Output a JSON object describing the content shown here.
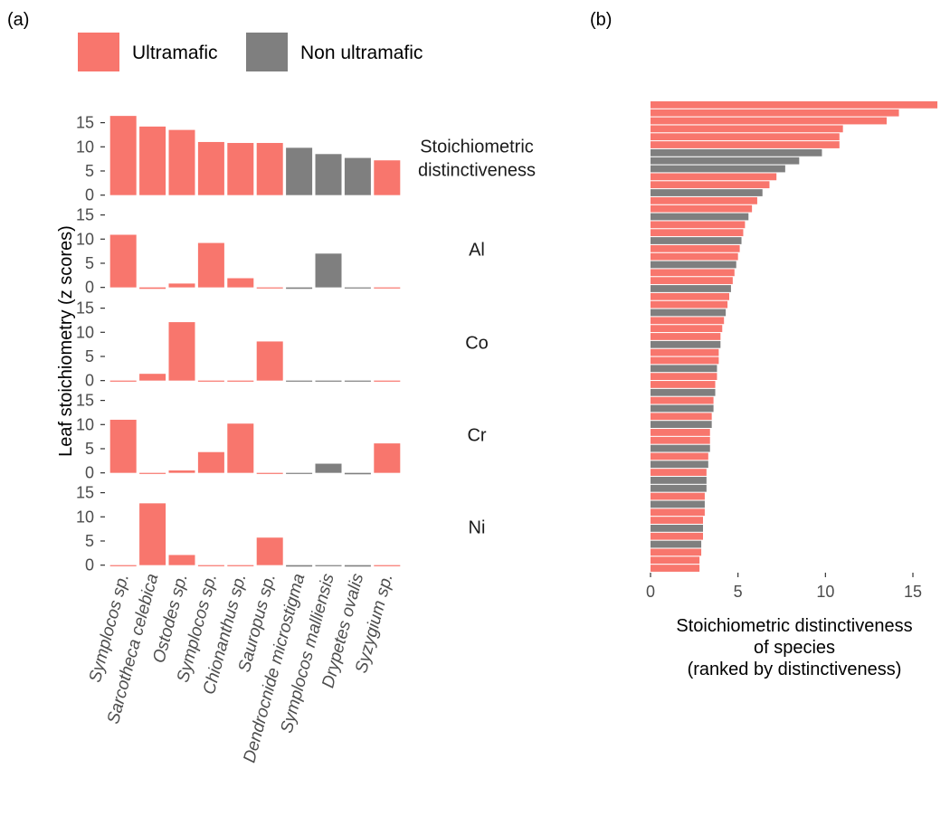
{
  "panel_labels": [
    "(a)",
    "(b)"
  ],
  "colors": {
    "ultramafic": "#F8766D",
    "non_ultramafic": "#7F7F7F"
  },
  "legend": {
    "items": [
      {
        "label": "Ultramafic",
        "group": "ultramafic"
      },
      {
        "label": "Non ultramafic",
        "group": "non_ultramafic"
      }
    ]
  },
  "chart_data": [
    {
      "type": "bar",
      "panel": "(a)",
      "ylabel": "Leaf stoichiometry (z scores)",
      "xlabel": "",
      "ylim": [
        -1,
        16.8
      ],
      "yticks": [
        0,
        5,
        10,
        15
      ],
      "grid": false,
      "legend_position": "top",
      "categories": [
        "Symplocos sp.",
        "Sarcotheca celebica",
        "Ostodes sp.",
        "Symplocos sp.",
        "Chionanthus sp.",
        "Sauropus sp.",
        "Dendrocnide microstigma",
        "Symplocos malliensis",
        "Drypetes ovalis",
        "Syzygium sp."
      ],
      "groups": [
        "ultramafic",
        "ultramafic",
        "ultramafic",
        "ultramafic",
        "ultramafic",
        "ultramafic",
        "non_ultramafic",
        "non_ultramafic",
        "non_ultramafic",
        "ultramafic"
      ],
      "facets": [
        {
          "label": "Stoichiometric\ndistinctiveness",
          "values": [
            16.4,
            14.2,
            13.5,
            11.0,
            10.8,
            10.8,
            9.8,
            8.5,
            7.7,
            7.2
          ]
        },
        {
          "label": "Al",
          "values": [
            10.9,
            -0.3,
            0.8,
            9.2,
            1.9,
            -0.2,
            -0.3,
            7.0,
            -0.2,
            -0.2
          ]
        },
        {
          "label": "Co",
          "values": [
            -0.2,
            1.4,
            12.1,
            -0.2,
            -0.2,
            8.1,
            -0.2,
            -0.2,
            -0.2,
            -0.2
          ]
        },
        {
          "label": "Cr",
          "values": [
            11.0,
            -0.2,
            0.5,
            4.3,
            10.2,
            -0.2,
            -0.2,
            1.9,
            -0.3,
            6.1
          ]
        },
        {
          "label": "Ni",
          "values": [
            -0.2,
            12.8,
            2.1,
            -0.2,
            -0.2,
            5.7,
            -0.3,
            -0.2,
            -0.3,
            -0.2
          ]
        }
      ]
    },
    {
      "type": "bar",
      "panel": "(b)",
      "orientation": "horizontal",
      "xlabel": "Stoichiometric distinctiveness\nof species\n(ranked by distinctiveness)",
      "ylabel": "",
      "xlim": [
        0,
        16.5
      ],
      "xticks": [
        0,
        5,
        10,
        15
      ],
      "grid": false,
      "bars_ranked_desc": [
        {
          "value": 16.4,
          "group": "ultramafic"
        },
        {
          "value": 14.2,
          "group": "ultramafic"
        },
        {
          "value": 13.5,
          "group": "ultramafic"
        },
        {
          "value": 11.0,
          "group": "ultramafic"
        },
        {
          "value": 10.8,
          "group": "ultramafic"
        },
        {
          "value": 10.8,
          "group": "ultramafic"
        },
        {
          "value": 9.8,
          "group": "non_ultramafic"
        },
        {
          "value": 8.5,
          "group": "non_ultramafic"
        },
        {
          "value": 7.7,
          "group": "non_ultramafic"
        },
        {
          "value": 7.2,
          "group": "ultramafic"
        },
        {
          "value": 6.8,
          "group": "ultramafic"
        },
        {
          "value": 6.4,
          "group": "non_ultramafic"
        },
        {
          "value": 6.1,
          "group": "ultramafic"
        },
        {
          "value": 5.8,
          "group": "ultramafic"
        },
        {
          "value": 5.6,
          "group": "non_ultramafic"
        },
        {
          "value": 5.4,
          "group": "ultramafic"
        },
        {
          "value": 5.3,
          "group": "ultramafic"
        },
        {
          "value": 5.2,
          "group": "non_ultramafic"
        },
        {
          "value": 5.1,
          "group": "ultramafic"
        },
        {
          "value": 5.0,
          "group": "ultramafic"
        },
        {
          "value": 4.9,
          "group": "non_ultramafic"
        },
        {
          "value": 4.8,
          "group": "ultramafic"
        },
        {
          "value": 4.7,
          "group": "ultramafic"
        },
        {
          "value": 4.6,
          "group": "non_ultramafic"
        },
        {
          "value": 4.5,
          "group": "ultramafic"
        },
        {
          "value": 4.4,
          "group": "ultramafic"
        },
        {
          "value": 4.3,
          "group": "non_ultramafic"
        },
        {
          "value": 4.2,
          "group": "ultramafic"
        },
        {
          "value": 4.1,
          "group": "ultramafic"
        },
        {
          "value": 4.0,
          "group": "ultramafic"
        },
        {
          "value": 4.0,
          "group": "non_ultramafic"
        },
        {
          "value": 3.9,
          "group": "ultramafic"
        },
        {
          "value": 3.9,
          "group": "ultramafic"
        },
        {
          "value": 3.8,
          "group": "non_ultramafic"
        },
        {
          "value": 3.8,
          "group": "ultramafic"
        },
        {
          "value": 3.7,
          "group": "ultramafic"
        },
        {
          "value": 3.7,
          "group": "non_ultramafic"
        },
        {
          "value": 3.6,
          "group": "ultramafic"
        },
        {
          "value": 3.6,
          "group": "non_ultramafic"
        },
        {
          "value": 3.5,
          "group": "ultramafic"
        },
        {
          "value": 3.5,
          "group": "non_ultramafic"
        },
        {
          "value": 3.4,
          "group": "ultramafic"
        },
        {
          "value": 3.4,
          "group": "ultramafic"
        },
        {
          "value": 3.4,
          "group": "non_ultramafic"
        },
        {
          "value": 3.3,
          "group": "ultramafic"
        },
        {
          "value": 3.3,
          "group": "non_ultramafic"
        },
        {
          "value": 3.2,
          "group": "ultramafic"
        },
        {
          "value": 3.2,
          "group": "non_ultramafic"
        },
        {
          "value": 3.2,
          "group": "non_ultramafic"
        },
        {
          "value": 3.1,
          "group": "ultramafic"
        },
        {
          "value": 3.1,
          "group": "non_ultramafic"
        },
        {
          "value": 3.1,
          "group": "ultramafic"
        },
        {
          "value": 3.0,
          "group": "ultramafic"
        },
        {
          "value": 3.0,
          "group": "non_ultramafic"
        },
        {
          "value": 3.0,
          "group": "ultramafic"
        },
        {
          "value": 2.9,
          "group": "non_ultramafic"
        },
        {
          "value": 2.9,
          "group": "ultramafic"
        },
        {
          "value": 2.8,
          "group": "ultramafic"
        },
        {
          "value": 2.8,
          "group": "ultramafic"
        }
      ]
    }
  ]
}
